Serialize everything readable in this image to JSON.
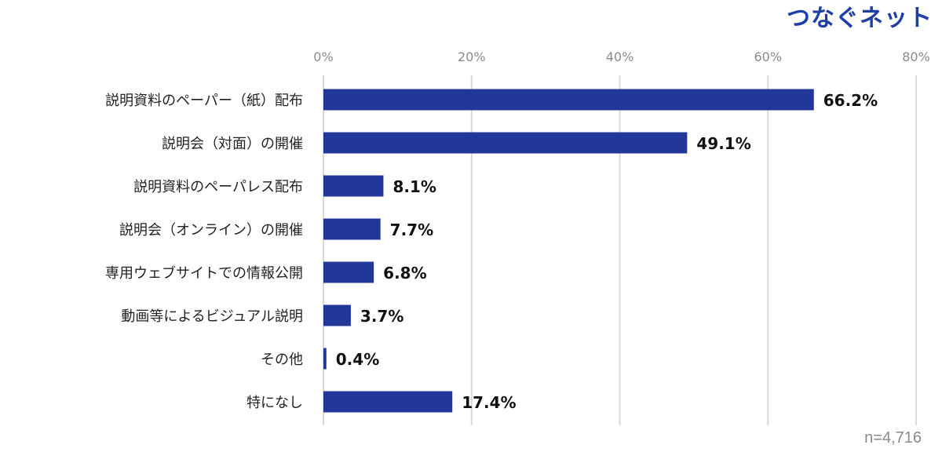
{
  "logo_text": "つなぐネット",
  "sample_size": "n=4,716",
  "colors": {
    "bar": "#22379a",
    "grid": "#d9d9d9",
    "tick_text": "#8a8a8a",
    "label_text": "#222222",
    "value_text": "#111111"
  },
  "chart_data": {
    "type": "bar",
    "orientation": "horizontal",
    "categories": [
      "説明資料のペーパー（紙）配布",
      "説明会（対面）の開催",
      "説明資料のペーパレス配布",
      "説明会（オンライン）の開催",
      "専用ウェブサイトでの情報公開",
      "動画等によるビジュアル説明",
      "その他",
      "特になし"
    ],
    "values": [
      66.2,
      49.1,
      8.1,
      7.7,
      6.8,
      3.7,
      0.4,
      17.4
    ],
    "value_labels": [
      "66.2%",
      "49.1%",
      "8.1%",
      "7.7%",
      "6.8%",
      "3.7%",
      "0.4%",
      "17.4%"
    ],
    "xlim": [
      0,
      80
    ],
    "x_ticks": [
      0,
      20,
      40,
      60,
      80
    ],
    "x_tick_labels": [
      "0%",
      "20%",
      "40%",
      "60%",
      "80%"
    ],
    "xaxis_position": "top",
    "grid": true,
    "legend": false
  }
}
